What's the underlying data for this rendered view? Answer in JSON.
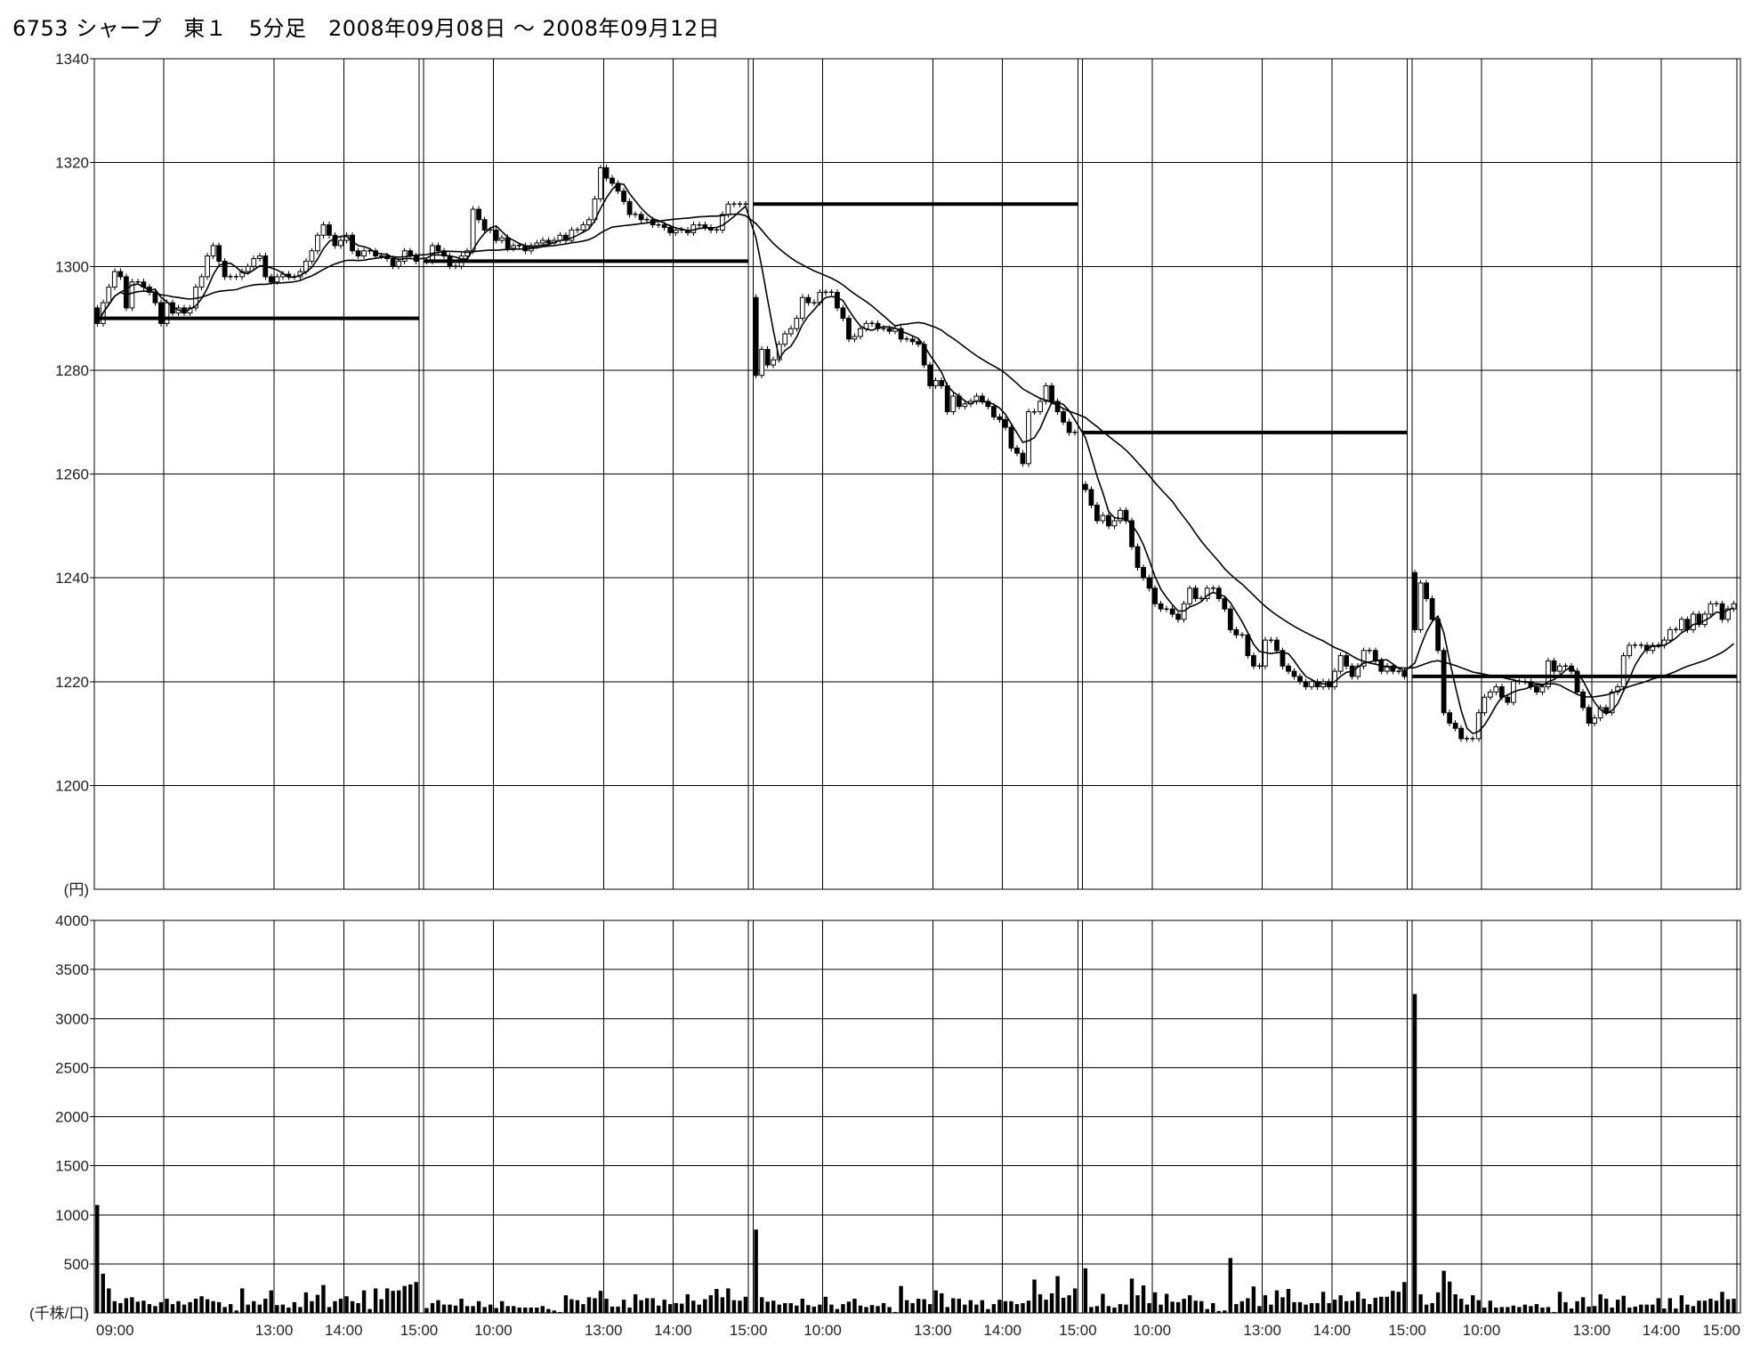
{
  "title": "6753 シャープ　東１　5分足　2008年09月08日 ～ 2008年09月12日",
  "chart_data": [
    {
      "type": "candlestick",
      "panel": "price",
      "ylim": [
        1180,
        1340
      ],
      "y_ticks": [
        1340,
        1320,
        1300,
        1280,
        1260,
        1240,
        1220,
        1200
      ],
      "y_unit_label": "(円)",
      "grid": true,
      "days": [
        {
          "open": 1292,
          "prev_close_line": 1290,
          "close": [
            1289,
            1293,
            1296,
            1299,
            1298,
            1292,
            1297,
            1297,
            1296,
            1295,
            1293,
            1289,
            1293,
            1291,
            1292,
            1291,
            1292,
            1296,
            1298,
            1302,
            1304,
            1301,
            1298,
            1298,
            1298,
            1299,
            1300,
            1301.5,
            1302,
            1298,
            1297,
            1298,
            1298.5,
            1298,
            1298,
            1299,
            1301,
            1303,
            1306,
            1308,
            1306,
            1304,
            1305,
            1306,
            1303,
            1302,
            1303,
            1303,
            1302,
            1302,
            1301.5,
            1300,
            1301,
            1303,
            1302,
            1301
          ]
        },
        {
          "open": 1301,
          "prev_close_line": 1301,
          "close": [
            1301,
            1304,
            1303,
            1302,
            1300,
            1300,
            1302,
            1303,
            1311,
            1309,
            1307,
            1307,
            1305,
            1305.5,
            1303.5,
            1304,
            1304,
            1303,
            1304,
            1304.5,
            1305,
            1304.5,
            1305,
            1306,
            1305,
            1307,
            1307,
            1308,
            1309,
            1313,
            1319,
            1317,
            1316,
            1314.5,
            1312.5,
            1310,
            1310,
            1309,
            1309,
            1308,
            1308,
            1307.5,
            1306.5,
            1307,
            1307,
            1306.5,
            1308,
            1308,
            1307.5,
            1307,
            1307,
            1310,
            1312,
            1312,
            1312,
            1312
          ]
        },
        {
          "open": 1294,
          "prev_close_line": 1312,
          "close": [
            1279,
            1284,
            1281,
            1282,
            1285,
            1287,
            1288,
            1290,
            1294,
            1293,
            1293,
            1295,
            1295,
            1295,
            1292,
            1290,
            1286,
            1286.5,
            1288,
            1289,
            1289,
            1288,
            1288,
            1287.5,
            1288,
            1286,
            1286,
            1285.5,
            1285,
            1281,
            1277,
            1278,
            1277,
            1272,
            1275,
            1273,
            1273.5,
            1274,
            1275,
            1274,
            1273,
            1271,
            1270.5,
            1269,
            1265,
            1264,
            1262,
            1272,
            1272,
            1274,
            1277,
            1274,
            1272,
            1270,
            1268,
            1268
          ]
        },
        {
          "open": 1258,
          "prev_close_line": 1268,
          "close": [
            1257,
            1254,
            1251,
            1252,
            1250,
            1251,
            1253,
            1251,
            1246,
            1242,
            1240,
            1238,
            1235,
            1234,
            1234,
            1233,
            1232,
            1235,
            1238,
            1236,
            1236,
            1238,
            1238,
            1236,
            1234,
            1230,
            1229,
            1229,
            1225,
            1223,
            1223,
            1228,
            1228,
            1226,
            1223,
            1222,
            1221,
            1220,
            1219,
            1220,
            1219,
            1220,
            1219,
            1222,
            1225,
            1223,
            1221,
            1223,
            1226,
            1226,
            1224,
            1222,
            1223,
            1222,
            1222,
            1221
          ]
        },
        {
          "open": 1241,
          "prev_close_line": 1221,
          "close": [
            1230,
            1239,
            1236,
            1232,
            1226,
            1214,
            1212,
            1211,
            1209,
            1209,
            1209,
            1214,
            1217,
            1218,
            1219,
            1217,
            1216,
            1220,
            1220,
            1220,
            1219,
            1218,
            1219,
            1224,
            1222,
            1223,
            1223,
            1222,
            1218,
            1215,
            1212,
            1213,
            1215,
            1214,
            1218,
            1219,
            1225,
            1227,
            1227,
            1227,
            1226,
            1227,
            1227,
            1228,
            1230,
            1230,
            1232,
            1230,
            1233,
            1231,
            1233,
            1235,
            1235,
            1232,
            1234,
            1235
          ]
        }
      ],
      "x_ticks": [
        {
          "day": 0,
          "time": "09:00"
        },
        {
          "day": 0,
          "time": "13:00"
        },
        {
          "day": 0,
          "time": "14:00"
        },
        {
          "day": 0,
          "time": "15:00"
        },
        {
          "day": 1,
          "time": "10:00"
        },
        {
          "day": 1,
          "time": "13:00"
        },
        {
          "day": 1,
          "time": "14:00"
        },
        {
          "day": 1,
          "time": "15:00"
        },
        {
          "day": 2,
          "time": "10:00"
        },
        {
          "day": 2,
          "time": "13:00"
        },
        {
          "day": 2,
          "time": "14:00"
        },
        {
          "day": 2,
          "time": "15:00"
        },
        {
          "day": 3,
          "time": "10:00"
        },
        {
          "day": 3,
          "time": "13:00"
        },
        {
          "day": 3,
          "time": "14:00"
        },
        {
          "day": 3,
          "time": "15:00"
        },
        {
          "day": 4,
          "time": "10:00"
        },
        {
          "day": 4,
          "time": "13:00"
        },
        {
          "day": 4,
          "time": "14:00"
        },
        {
          "day": 4,
          "time": "15:00"
        }
      ]
    },
    {
      "type": "bar",
      "panel": "volume",
      "ylim": [
        0,
        4000
      ],
      "y_ticks": [
        4000,
        3500,
        3000,
        2500,
        2000,
        1500,
        1000,
        500
      ],
      "y_unit_label": "(千株/口)",
      "grid": true,
      "days": [
        [
          1100,
          400,
          250,
          120,
          100,
          150,
          160,
          115,
          125,
          90,
          70,
          110,
          145,
          90,
          120,
          85,
          110,
          145,
          170,
          140,
          120,
          110,
          60,
          90,
          25,
          250,
          85,
          120,
          85,
          145,
          230,
          80,
          85,
          55,
          110,
          60,
          210,
          120,
          185,
          285,
          60,
          120,
          145,
          170,
          120,
          100,
          230,
          40,
          250,
          140,
          250,
          225,
          230,
          275,
          290,
          315
        ],
        [
          50,
          100,
          130,
          85,
          85,
          75,
          145,
          70,
          70,
          120,
          60,
          85,
          50,
          120,
          70,
          70,
          55,
          55,
          55,
          55,
          70,
          40,
          25,
          10,
          180,
          140,
          130,
          90,
          160,
          150,
          225,
          145,
          65,
          65,
          135,
          55,
          190,
          130,
          150,
          150,
          75,
          135,
          90,
          100,
          95,
          190,
          125,
          85,
          140,
          180,
          245,
          160,
          250,
          130,
          125,
          165
        ],
        [
          850,
          160,
          115,
          125,
          85,
          100,
          100,
          75,
          145,
          80,
          65,
          85,
          165,
          85,
          40,
          90,
          115,
          145,
          75,
          60,
          80,
          70,
          100,
          60,
          10,
          275,
          130,
          100,
          145,
          140,
          90,
          230,
          200,
          60,
          150,
          145,
          85,
          130,
          85,
          130,
          40,
          90,
          135,
          120,
          120,
          90,
          100,
          125,
          340,
          190,
          135,
          200,
          375,
          155,
          180,
          250
        ],
        [
          455,
          60,
          70,
          195,
          70,
          55,
          90,
          85,
          350,
          180,
          280,
          100,
          210,
          85,
          195,
          115,
          110,
          145,
          180,
          125,
          120,
          40,
          100,
          20,
          25,
          560,
          90,
          120,
          150,
          270,
          70,
          180,
          85,
          230,
          160,
          245,
          110,
          110,
          85,
          100,
          100,
          215,
          100,
          135,
          180,
          120,
          125,
          215,
          145,
          90,
          155,
          165,
          165,
          225,
          215,
          315
        ],
        [
          3250,
          190,
          85,
          100,
          210,
          430,
          320,
          190,
          145,
          85,
          180,
          130,
          55,
          125,
          55,
          60,
          60,
          75,
          60,
          85,
          70,
          90,
          55,
          60,
          10,
          215,
          110,
          45,
          120,
          160,
          65,
          70,
          190,
          145,
          55,
          135,
          175,
          55,
          65,
          85,
          85,
          85,
          150,
          45,
          150,
          45,
          180,
          85,
          70,
          125,
          125,
          145,
          125,
          215,
          140,
          145
        ]
      ]
    }
  ]
}
